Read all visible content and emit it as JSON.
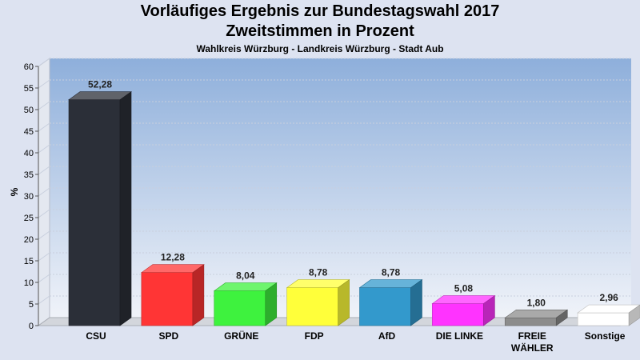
{
  "title": "Vorläufiges Ergebnis zur Bundestagswahl 2017",
  "subtitle": "Zweitstimmen in Prozent",
  "subsubtitle": "Wahlkreis Würzburg - Landkreis Würzburg - Stadt Aub",
  "chart_data": {
    "type": "bar",
    "ylabel": "%",
    "ylim": [
      0,
      60
    ],
    "ytick_step": 5,
    "grid": true,
    "categories": [
      [
        "CSU"
      ],
      [
        "SPD"
      ],
      [
        "GRÜNE"
      ],
      [
        "FDP"
      ],
      [
        "AfD"
      ],
      [
        "DIE LINKE"
      ],
      [
        "FREIE",
        "WÄHLER"
      ],
      [
        "Sonstige"
      ]
    ],
    "values": [
      52.28,
      12.28,
      8.04,
      8.78,
      8.78,
      5.08,
      1.8,
      2.96
    ],
    "value_labels": [
      "52,28",
      "12,28",
      "8,04",
      "8,78",
      "8,78",
      "5,08",
      "1,80",
      "2,96"
    ],
    "colors": [
      "#2b2f38",
      "#ff3535",
      "#3ef23e",
      "#ffff3a",
      "#3399cc",
      "#ff33ff",
      "#8c8c8c",
      "#ffffff"
    ]
  }
}
